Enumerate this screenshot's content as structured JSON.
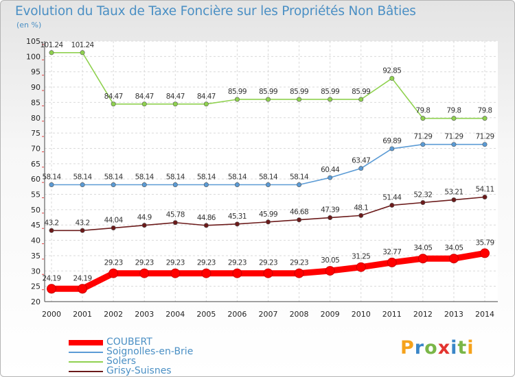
{
  "title": "Evolution du Taux de Taxe Foncière sur les Propriétés Non Bâties",
  "subtitle": "(en %)",
  "logo": {
    "text": "Proxiti",
    "letters": [
      "P",
      "r",
      "o",
      "x",
      "i",
      "t",
      "i"
    ],
    "colors": [
      "#f5a21b",
      "#3a86c8",
      "#7ab648",
      "#e3342f",
      "#3a86c8",
      "#7ab648",
      "#f5a21b"
    ]
  },
  "chart_data": {
    "type": "line",
    "title": "Evolution du Taux de Taxe Foncière sur les Propriétés Non Bâties",
    "ylabel": "(en %)",
    "xlabel": "",
    "ylim": [
      20,
      105
    ],
    "yticks": [
      20,
      25,
      30,
      35,
      40,
      45,
      50,
      55,
      60,
      65,
      70,
      75,
      80,
      85,
      90,
      95,
      100,
      105
    ],
    "grid": true,
    "legend": "bottom-left",
    "x": [
      "2000",
      "2001",
      "2002",
      "2003",
      "2004",
      "2005",
      "2006",
      "2007",
      "2008",
      "2009",
      "2010",
      "2011",
      "2012",
      "2013",
      "2014"
    ],
    "series": [
      {
        "name": "COUBERT",
        "color": "#ff0000",
        "values": [
          24.19,
          24.19,
          29.23,
          29.23,
          29.23,
          29.23,
          29.23,
          29.23,
          29.23,
          30.05,
          31.25,
          32.77,
          34.05,
          34.05,
          35.79
        ],
        "labels": [
          "24.19",
          "24.19",
          "29.23",
          "29.23",
          "29.23",
          "29.23",
          "29.23",
          "29.23",
          "29.23",
          "30.05",
          "31.25",
          "32.77",
          "34.05",
          "34.05",
          "35.79"
        ]
      },
      {
        "name": "Soignolles-en-Brie",
        "color": "#5b9bd5",
        "values": [
          58.14,
          58.14,
          58.14,
          58.14,
          58.14,
          58.14,
          58.14,
          58.14,
          58.14,
          60.44,
          63.47,
          69.89,
          71.29,
          71.29,
          71.29
        ],
        "labels": [
          "58.14",
          "58.14",
          "58.14",
          "58.14",
          "58.14",
          "58.14",
          "58.14",
          "58.14",
          "58.14",
          "60.44",
          "63.47",
          "69.89",
          "71.29",
          "71.29",
          "71.29"
        ]
      },
      {
        "name": "Solers",
        "color": "#8fd14f",
        "values": [
          101.24,
          101.24,
          84.47,
          84.47,
          84.47,
          84.47,
          85.99,
          85.99,
          85.99,
          85.99,
          85.99,
          92.85,
          79.8,
          79.8,
          79.8
        ],
        "labels": [
          "101.24",
          "101.24",
          "84.47",
          "84.47",
          "84.47",
          "84.47",
          "85.99",
          "85.99",
          "85.99",
          "85.99",
          "85.99",
          "92.85",
          "79.8",
          "79.8",
          "79.8"
        ]
      },
      {
        "name": "Grisy-Suisnes",
        "color": "#6b1a1a",
        "values": [
          43.2,
          43.2,
          44.04,
          44.9,
          45.78,
          44.86,
          45.31,
          45.99,
          46.68,
          47.39,
          48.1,
          51.44,
          52.32,
          53.21,
          54.11
        ],
        "labels": [
          "43.2",
          "43.2",
          "44.04",
          "44.9",
          "45.78",
          "44.86",
          "45.31",
          "45.99",
          "46.68",
          "47.39",
          "48.1",
          "51.44",
          "52.32",
          "53.21",
          "54.11"
        ]
      }
    ]
  }
}
